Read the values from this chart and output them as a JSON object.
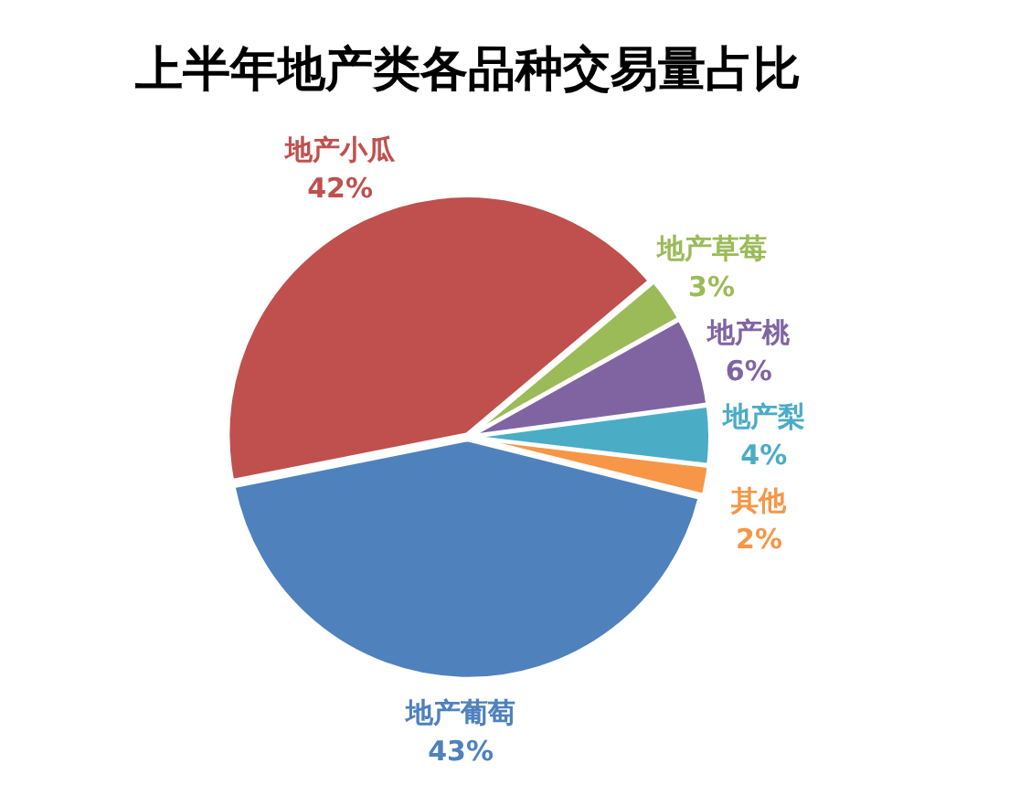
{
  "chart_data": {
    "type": "pie",
    "title": "上半年地产类各品种交易量占比",
    "categories": [
      "地产草莓",
      "地产桃",
      "地产梨",
      "其他",
      "地产葡萄",
      "地产小瓜"
    ],
    "values": [
      3,
      6,
      4,
      2,
      43,
      42
    ],
    "value_labels": [
      "3%",
      "6%",
      "4%",
      "2%",
      "43%",
      "42%"
    ],
    "colors": [
      "#9bbb59",
      "#8064a2",
      "#4bacc6",
      "#f79646",
      "#4f81bd",
      "#c0504d"
    ],
    "legend": false
  }
}
